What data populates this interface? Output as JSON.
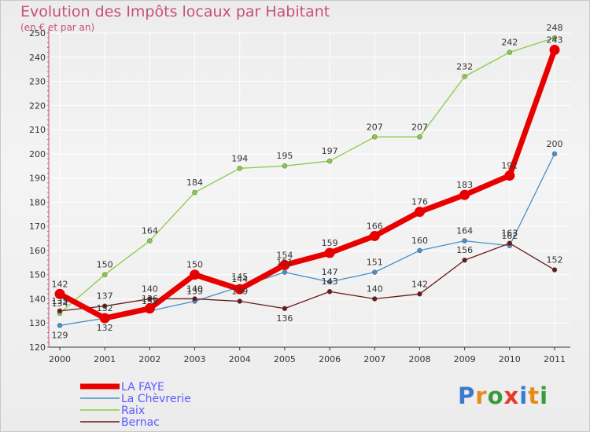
{
  "chart_data": {
    "type": "line",
    "title": "Evolution des Impôts locaux par Habitant",
    "subtitle": "(en € et par an)",
    "xlabel": "",
    "ylabel": "",
    "ylim": [
      120,
      250
    ],
    "yticks": [
      120,
      130,
      140,
      150,
      160,
      170,
      180,
      190,
      200,
      210,
      220,
      230,
      240,
      250
    ],
    "categories": [
      "2000",
      "2001",
      "2002",
      "2003",
      "2004",
      "2005",
      "2006",
      "2007",
      "2008",
      "2009",
      "2010",
      "2011"
    ],
    "series": [
      {
        "name": "LA FAYE",
        "color": "#e80000",
        "values": [
          142,
          132,
          136,
          150,
          144,
          154,
          159,
          166,
          176,
          183,
          191,
          243
        ]
      },
      {
        "name": "La Chèvrerie",
        "color": "#4a90c8",
        "values": [
          129,
          132,
          135,
          139,
          145,
          151,
          147,
          151,
          160,
          164,
          162,
          200
        ]
      },
      {
        "name": "Raix",
        "color": "#88cc44",
        "values": [
          134,
          150,
          164,
          184,
          194,
          195,
          197,
          207,
          207,
          232,
          242,
          248
        ]
      },
      {
        "name": "Bernac",
        "color": "#6a1a1a",
        "values": [
          135,
          137,
          140,
          140,
          139,
          136,
          143,
          140,
          142,
          156,
          163,
          152
        ]
      }
    ],
    "legend_position": "bottom-left"
  },
  "legend_colors": {
    "LA FAYE": "#5a5aff",
    "La Chèvrerie": "#5a5aff",
    "Raix": "#5a5aff",
    "Bernac": "#5a5aff"
  },
  "logo": {
    "text": "Proxiti",
    "letters": [
      "P",
      "r",
      "o",
      "x",
      "i",
      "t",
      "i"
    ],
    "colors": [
      "#3a7ad0",
      "#e88a1a",
      "#3a9a3a",
      "#e83a2a",
      "#3a7ad0",
      "#e88a1a",
      "#3a9a3a"
    ]
  }
}
